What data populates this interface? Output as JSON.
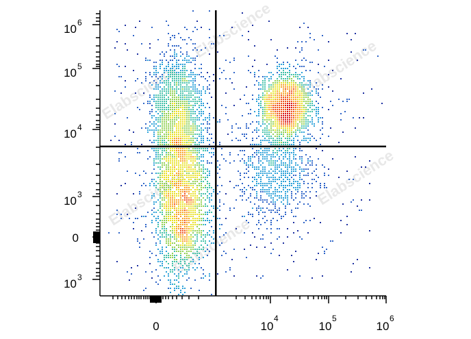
{
  "chart_data": {
    "type": "scatter",
    "plot_style": "flow-cytometry pseudocolor density dot plot",
    "x_axis": {
      "scale": "biexponential",
      "tick_labels": [
        {
          "base": "0",
          "exp": ""
        },
        {
          "base": "10",
          "exp": "4"
        },
        {
          "base": "10",
          "exp": "5"
        },
        {
          "base": "10",
          "exp": "6"
        }
      ]
    },
    "y_axis": {
      "scale": "biexponential",
      "tick_labels": [
        {
          "base": "10",
          "exp": "6"
        },
        {
          "base": "10",
          "exp": "5"
        },
        {
          "base": "10",
          "exp": "4"
        },
        {
          "base": "10",
          "exp": "3"
        },
        {
          "base": "0",
          "exp": ""
        },
        {
          "base": "10",
          "exp": "3"
        }
      ]
    },
    "quadrant_gate": {
      "x_fraction": 0.405,
      "y_fraction": 0.523
    },
    "populations": [
      {
        "label": "lower-left population",
        "cx": 0.29,
        "cy": 0.33,
        "sx": 0.05,
        "sy": 0.14,
        "n": 5500,
        "peak_color": "#ffe000"
      },
      {
        "label": "upper-left population",
        "cx": 0.27,
        "cy": 0.63,
        "sx": 0.045,
        "sy": 0.11,
        "n": 2200,
        "peak_color": "#7cc850"
      },
      {
        "label": "upper-right population",
        "cx": 0.65,
        "cy": 0.66,
        "sx": 0.045,
        "sy": 0.06,
        "n": 3300,
        "peak_color": "#e02010"
      },
      {
        "label": "lower-right population",
        "cx": 0.62,
        "cy": 0.43,
        "sx": 0.065,
        "sy": 0.09,
        "n": 900,
        "peak_color": "#3050b0"
      }
    ],
    "density_colors": [
      "#1c2fa0",
      "#2e64c8",
      "#2aa0d8",
      "#40c0a8",
      "#90d050",
      "#e8e020",
      "#f8a020",
      "#f05018",
      "#d81010"
    ],
    "watermark": "Elabscience"
  }
}
